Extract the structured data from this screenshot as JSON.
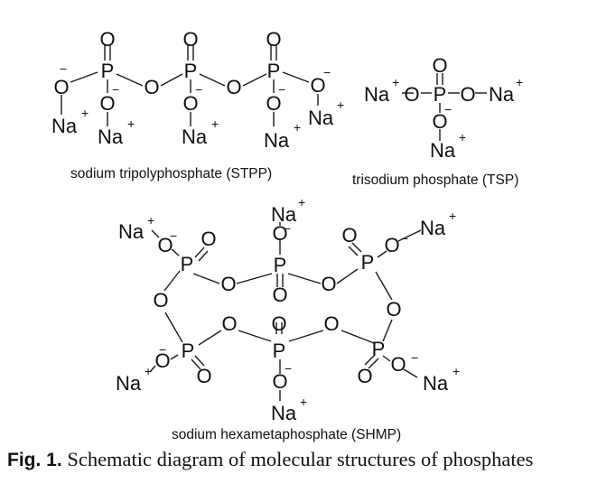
{
  "labels": {
    "stpp": "sodium tripolyphosphate (STPP)",
    "tsp": "trisodium phosphate (TSP)",
    "shmp": "sodium hexametaphosphate (SHMP)"
  },
  "atoms": {
    "phosphorus": "P",
    "oxygen": "O",
    "sodium": "Na"
  },
  "charges": {
    "positive": "+",
    "negative": "−"
  },
  "caption": {
    "figure_number": "Fig. 1.",
    "text": "Schematic diagram of molecular structures of phosphates"
  }
}
